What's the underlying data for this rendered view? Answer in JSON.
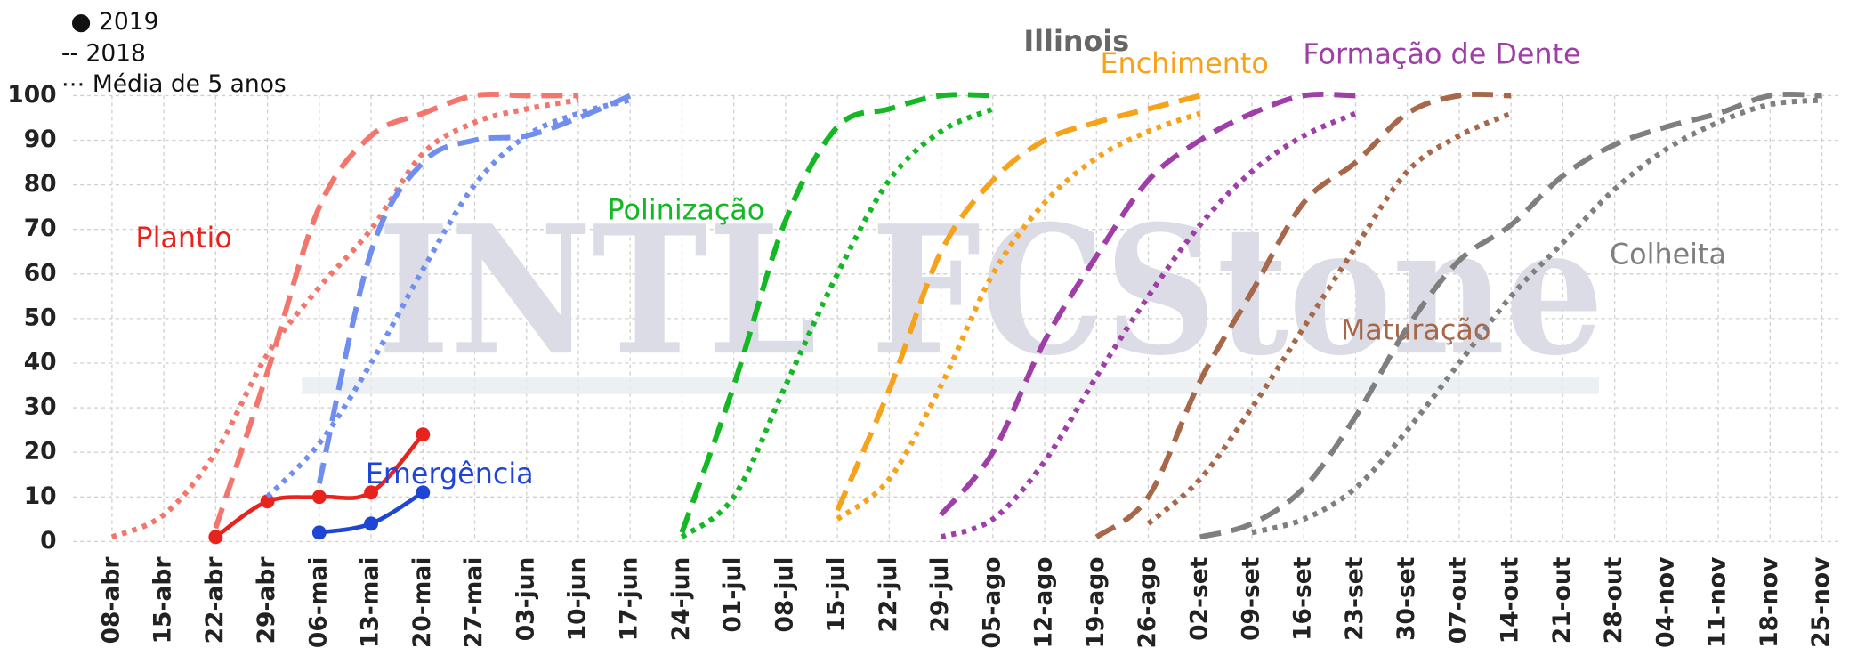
{
  "chart_data": {
    "type": "line",
    "title": "Illinois",
    "watermark": "INTL FCStone",
    "legend": [
      "● 2019",
      "-- 2018",
      "⋯ Média de 5 anos"
    ],
    "categories": [
      "08-abr",
      "15-abr",
      "22-abr",
      "29-abr",
      "06-mai",
      "13-mai",
      "20-mai",
      "27-mai",
      "03-jun",
      "10-jun",
      "17-jun",
      "24-jun",
      "01-jul",
      "08-jul",
      "15-jul",
      "22-jul",
      "29-jul",
      "05-ago",
      "12-ago",
      "19-ago",
      "26-ago",
      "02-set",
      "09-set",
      "16-set",
      "23-set",
      "30-set",
      "07-out",
      "14-out",
      "21-out",
      "28-out",
      "04-nov",
      "11-nov",
      "18-nov",
      "25-nov"
    ],
    "ylim": [
      0,
      100
    ],
    "yticks": [
      0,
      10,
      20,
      30,
      40,
      50,
      60,
      70,
      80,
      90,
      100
    ],
    "grid": true,
    "stages": [
      {
        "name": "Plantio",
        "color": "#e8231d",
        "series": [
          {
            "style": "solid",
            "color": "#e8231d",
            "values": [
              null,
              null,
              1,
              9,
              10,
              11,
              24,
              null,
              null,
              null,
              null,
              null,
              null,
              null,
              null,
              null,
              null,
              null,
              null,
              null,
              null,
              null,
              null,
              null,
              null,
              null,
              null,
              null,
              null,
              null,
              null,
              null,
              null,
              null
            ]
          },
          {
            "style": "dashed",
            "color": "#f4756b",
            "values": [
              null,
              null,
              3,
              38,
              75,
              91,
              96,
              100,
              100,
              100,
              null,
              null,
              null,
              null,
              null,
              null,
              null,
              null,
              null,
              null,
              null,
              null,
              null,
              null,
              null,
              null,
              null,
              null,
              null,
              null,
              null,
              null,
              null,
              null
            ]
          },
          {
            "style": "dotted",
            "color": "#f4756b",
            "values": [
              1,
              6,
              20,
              42,
              57,
              70,
              87,
              94,
              97,
              99,
              null,
              null,
              null,
              null,
              null,
              null,
              null,
              null,
              null,
              null,
              null,
              null,
              null,
              null,
              null,
              null,
              null,
              null,
              null,
              null,
              null,
              null,
              null,
              null
            ]
          }
        ]
      },
      {
        "name": "Emergência",
        "color": "#1f45d6",
        "series": [
          {
            "style": "solid",
            "color": "#1f45d6",
            "values": [
              null,
              null,
              null,
              null,
              2,
              4,
              11,
              null,
              null,
              null,
              null,
              null,
              null,
              null,
              null,
              null,
              null,
              null,
              null,
              null,
              null,
              null,
              null,
              null,
              null,
              null,
              null,
              null,
              null,
              null,
              null,
              null,
              null,
              null
            ]
          },
          {
            "style": "dashed",
            "color": "#6f8ef0",
            "values": [
              null,
              null,
              null,
              null,
              13,
              65,
              85,
              90,
              91,
              95,
              100,
              null,
              null,
              null,
              null,
              null,
              null,
              null,
              null,
              null,
              null,
              null,
              null,
              null,
              null,
              null,
              null,
              null,
              null,
              null,
              null,
              null,
              null,
              null
            ]
          },
          {
            "style": "dotted",
            "color": "#6f8ef0",
            "values": [
              null,
              null,
              null,
              10,
              22,
              40,
              61,
              80,
              91,
              96,
              99,
              null,
              null,
              null,
              null,
              null,
              null,
              null,
              null,
              null,
              null,
              null,
              null,
              null,
              null,
              null,
              null,
              null,
              null,
              null,
              null,
              null,
              null,
              null
            ]
          }
        ]
      },
      {
        "name": "Polinização",
        "color": "#14b824",
        "series": [
          {
            "style": "dashed",
            "color": "#14b824",
            "values": [
              null,
              null,
              null,
              null,
              null,
              null,
              null,
              null,
              null,
              null,
              null,
              2,
              35,
              72,
              93,
              97,
              100,
              100,
              null,
              null,
              null,
              null,
              null,
              null,
              null,
              null,
              null,
              null,
              null,
              null,
              null,
              null,
              null,
              null
            ]
          },
          {
            "style": "dotted",
            "color": "#14b824",
            "values": [
              null,
              null,
              null,
              null,
              null,
              null,
              null,
              null,
              null,
              null,
              null,
              1,
              10,
              35,
              60,
              81,
              92,
              97,
              null,
              null,
              null,
              null,
              null,
              null,
              null,
              null,
              null,
              null,
              null,
              null,
              null,
              null,
              null,
              null
            ]
          }
        ]
      },
      {
        "name": "Enchimento",
        "color": "#f7a21b",
        "series": [
          {
            "style": "dashed",
            "color": "#f7a21b",
            "values": [
              null,
              null,
              null,
              null,
              null,
              null,
              null,
              null,
              null,
              null,
              null,
              null,
              null,
              null,
              7,
              34,
              65,
              81,
              90,
              94,
              97,
              100,
              null,
              null,
              null,
              null,
              null,
              null,
              null,
              null,
              null,
              null,
              null,
              null
            ]
          },
          {
            "style": "dotted",
            "color": "#f7a21b",
            "values": [
              null,
              null,
              null,
              null,
              null,
              null,
              null,
              null,
              null,
              null,
              null,
              null,
              null,
              null,
              5,
              14,
              35,
              60,
              76,
              86,
              92,
              96,
              null,
              null,
              null,
              null,
              null,
              null,
              null,
              null,
              null,
              null,
              null,
              null
            ]
          }
        ]
      },
      {
        "name": "Formação de Dente",
        "color": "#a03ea8",
        "series": [
          {
            "style": "dashed",
            "color": "#a03ea8",
            "values": [
              null,
              null,
              null,
              null,
              null,
              null,
              null,
              null,
              null,
              null,
              null,
              null,
              null,
              null,
              null,
              null,
              6,
              20,
              45,
              64,
              81,
              90,
              96,
              100,
              100,
              null,
              null,
              null,
              null,
              null,
              null,
              null,
              null,
              null
            ]
          },
          {
            "style": "dotted",
            "color": "#a03ea8",
            "values": [
              null,
              null,
              null,
              null,
              null,
              null,
              null,
              null,
              null,
              null,
              null,
              null,
              null,
              null,
              null,
              null,
              1,
              5,
              18,
              37,
              55,
              71,
              83,
              91,
              96,
              null,
              null,
              null,
              null,
              null,
              null,
              null,
              null,
              null
            ]
          }
        ]
      },
      {
        "name": "Maturação",
        "color": "#a7684a",
        "series": [
          {
            "style": "dashed",
            "color": "#a7684a",
            "values": [
              null,
              null,
              null,
              null,
              null,
              null,
              null,
              null,
              null,
              null,
              null,
              null,
              null,
              null,
              null,
              null,
              null,
              null,
              null,
              1,
              10,
              36,
              56,
              76,
              85,
              96,
              100,
              100,
              null,
              null,
              null,
              null,
              null,
              null
            ]
          },
          {
            "style": "dotted",
            "color": "#a7684a",
            "values": [
              null,
              null,
              null,
              null,
              null,
              null,
              null,
              null,
              null,
              null,
              null,
              null,
              null,
              null,
              null,
              null,
              null,
              null,
              null,
              null,
              4,
              14,
              30,
              48,
              66,
              83,
              91,
              96,
              null,
              null,
              null,
              null,
              null,
              null
            ]
          }
        ]
      },
      {
        "name": "Colheita",
        "color": "#7f7f7f",
        "series": [
          {
            "style": "dashed",
            "color": "#7f7f7f",
            "values": [
              null,
              null,
              null,
              null,
              null,
              null,
              null,
              null,
              null,
              null,
              null,
              null,
              null,
              null,
              null,
              null,
              null,
              null,
              null,
              null,
              null,
              1,
              4,
              12,
              28,
              48,
              63,
              71,
              82,
              89,
              93,
              96,
              100,
              100
            ]
          },
          {
            "style": "dotted",
            "color": "#7f7f7f",
            "values": [
              null,
              null,
              null,
              null,
              null,
              null,
              null,
              null,
              null,
              null,
              null,
              null,
              null,
              null,
              null,
              null,
              null,
              null,
              null,
              null,
              null,
              null,
              2,
              5,
              12,
              25,
              40,
              55,
              67,
              79,
              88,
              94,
              98,
              99
            ]
          }
        ]
      }
    ]
  }
}
